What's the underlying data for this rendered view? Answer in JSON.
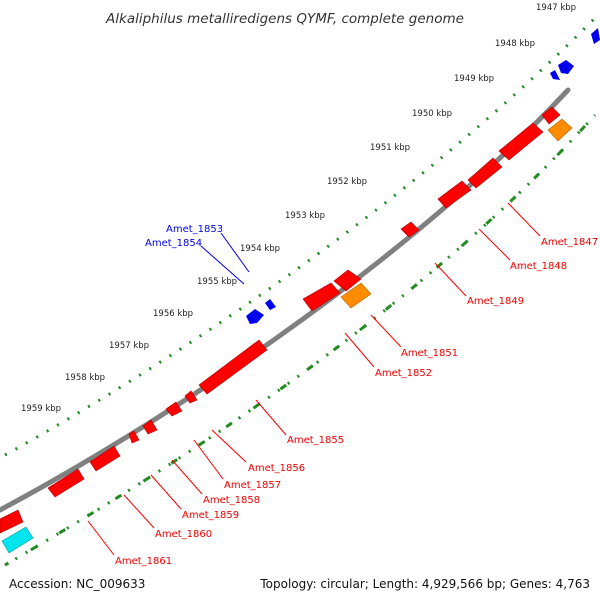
{
  "title": "Alkaliphilus metalliredigens QYMF, complete genome",
  "footer": {
    "accession": "Accession: NC_009633",
    "topology": "Topology: circular; Length: 4,929,566 bp; Genes: 4,763"
  },
  "colors": {
    "backbone": "#808080",
    "tick": "#228b22",
    "forward_gene": "#0000ee",
    "reverse_gene": "#ff0000",
    "highlight_gene": "#ff8c00",
    "rna_gene": "#00e5ee"
  },
  "kbp_labels": [
    "1947 kbp",
    "1948 kbp",
    "1949 kbp",
    "1950 kbp",
    "1951 kbp",
    "1952 kbp",
    "1953 kbp",
    "1954 kbp",
    "1955 kbp",
    "1956 kbp",
    "1957 kbp",
    "1958 kbp",
    "1959 kbp"
  ],
  "gene_labels": {
    "Amet_1847": "Amet_1847",
    "Amet_1848": "Amet_1848",
    "Amet_1849": "Amet_1849",
    "Amet_1851": "Amet_1851",
    "Amet_1852": "Amet_1852",
    "Amet_1853": "Amet_1853",
    "Amet_1854": "Amet_1854",
    "Amet_1855": "Amet_1855",
    "Amet_1856": "Amet_1856",
    "Amet_1857": "Amet_1857",
    "Amet_1858": "Amet_1858",
    "Amet_1859": "Amet_1859",
    "Amet_1860": "Amet_1860",
    "Amet_1861": "Amet_1861"
  }
}
